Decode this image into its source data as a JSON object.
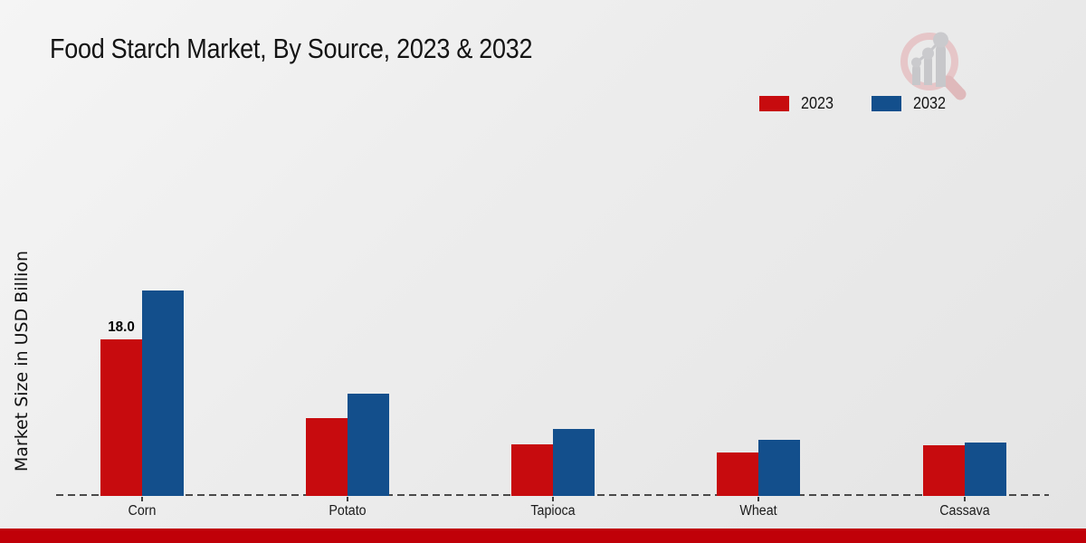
{
  "header": {
    "title": "Food Starch Market, By Source, 2023 & 2032"
  },
  "y_axis_label": "Market Size in USD Billion",
  "legend": [
    {
      "label": "2023",
      "color": "#c70b0e"
    },
    {
      "label": "2032",
      "color": "#134f8c"
    }
  ],
  "chart_data": {
    "type": "bar",
    "title": "Food Starch Market, By Source, 2023 & 2032",
    "ylabel": "Market Size in USD Billion",
    "xlabel": "",
    "categories": [
      "Corn",
      "Potato",
      "Tapioca",
      "Wheat",
      "Cassava"
    ],
    "series": [
      {
        "name": "2023",
        "color": "#c70b0e",
        "values": [
          18.0,
          8.9,
          5.9,
          5.0,
          5.8
        ]
      },
      {
        "name": "2032",
        "color": "#134f8c",
        "values": [
          23.6,
          11.8,
          7.7,
          6.5,
          6.1
        ]
      }
    ],
    "bar_labels": [
      {
        "category": "Corn",
        "series": "2023",
        "text": "18.0"
      }
    ],
    "ylim": [
      0,
      25
    ],
    "grid": false,
    "legend_position": "top-right",
    "baseline_style": "dashed"
  },
  "footer": {
    "band_color": "#c00008"
  },
  "logo": {
    "name": "magnifier-growth-chart-logo"
  }
}
